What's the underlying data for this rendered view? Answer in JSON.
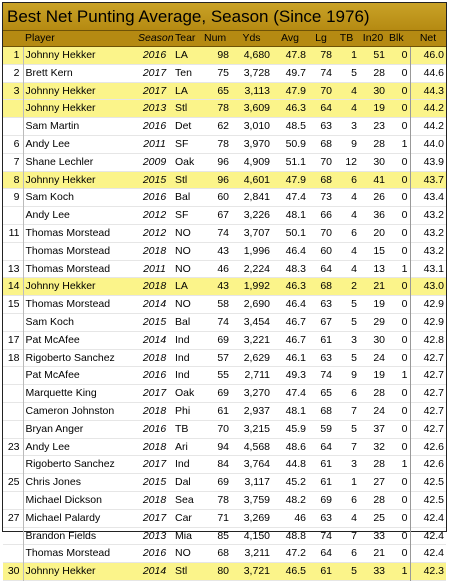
{
  "title": "Best Net Punting Average, Season (Since 1976)",
  "columns": {
    "rank": "",
    "player": "Player",
    "season": "Season",
    "team": "Tear",
    "num": "Num",
    "yds": "Yds",
    "avg": "Avg",
    "lg": "Lg",
    "tb": "TB",
    "in20": "In20",
    "blk": "Blk",
    "net": "Net"
  },
  "highlight_color": "#fbf48a",
  "header_color": "#b58a12",
  "rows": [
    {
      "rank": "1",
      "player": "Johnny Hekker",
      "season": "2016",
      "team": "LA",
      "num": "98",
      "yds": "4,680",
      "avg": "47.8",
      "lg": "78",
      "tb": "1",
      "in20": "51",
      "blk": "0",
      "net": "46.0",
      "hl": true
    },
    {
      "rank": "2",
      "player": "Brett Kern",
      "season": "2017",
      "team": "Ten",
      "num": "75",
      "yds": "3,728",
      "avg": "49.7",
      "lg": "74",
      "tb": "5",
      "in20": "28",
      "blk": "0",
      "net": "44.6",
      "hl": false
    },
    {
      "rank": "3",
      "player": "Johnny Hekker",
      "season": "2017",
      "team": "LA",
      "num": "65",
      "yds": "3,113",
      "avg": "47.9",
      "lg": "70",
      "tb": "4",
      "in20": "30",
      "blk": "0",
      "net": "44.3",
      "hl": true
    },
    {
      "rank": "",
      "player": "Johnny Hekker",
      "season": "2013",
      "team": "Stl",
      "num": "78",
      "yds": "3,609",
      "avg": "46.3",
      "lg": "64",
      "tb": "4",
      "in20": "19",
      "blk": "0",
      "net": "44.2",
      "hl": true
    },
    {
      "rank": "",
      "player": "Sam Martin",
      "season": "2016",
      "team": "Det",
      "num": "62",
      "yds": "3,010",
      "avg": "48.5",
      "lg": "63",
      "tb": "3",
      "in20": "23",
      "blk": "0",
      "net": "44.2",
      "hl": false
    },
    {
      "rank": "6",
      "player": "Andy Lee",
      "season": "2011",
      "team": "SF",
      "num": "78",
      "yds": "3,970",
      "avg": "50.9",
      "lg": "68",
      "tb": "9",
      "in20": "28",
      "blk": "1",
      "net": "44.0",
      "hl": false
    },
    {
      "rank": "7",
      "player": "Shane Lechler",
      "season": "2009",
      "team": "Oak",
      "num": "96",
      "yds": "4,909",
      "avg": "51.1",
      "lg": "70",
      "tb": "12",
      "in20": "30",
      "blk": "0",
      "net": "43.9",
      "hl": false
    },
    {
      "rank": "8",
      "player": "Johnny Hekker",
      "season": "2015",
      "team": "Stl",
      "num": "96",
      "yds": "4,601",
      "avg": "47.9",
      "lg": "68",
      "tb": "6",
      "in20": "41",
      "blk": "0",
      "net": "43.7",
      "hl": true
    },
    {
      "rank": "9",
      "player": "Sam Koch",
      "season": "2016",
      "team": "Bal",
      "num": "60",
      "yds": "2,841",
      "avg": "47.4",
      "lg": "73",
      "tb": "4",
      "in20": "26",
      "blk": "0",
      "net": "43.4",
      "hl": false
    },
    {
      "rank": "",
      "player": "Andy Lee",
      "season": "2012",
      "team": "SF",
      "num": "67",
      "yds": "3,226",
      "avg": "48.1",
      "lg": "66",
      "tb": "4",
      "in20": "36",
      "blk": "0",
      "net": "43.2",
      "hl": false
    },
    {
      "rank": "11",
      "player": "Thomas Morstead",
      "season": "2012",
      "team": "NO",
      "num": "74",
      "yds": "3,707",
      "avg": "50.1",
      "lg": "70",
      "tb": "6",
      "in20": "20",
      "blk": "0",
      "net": "43.2",
      "hl": false
    },
    {
      "rank": "",
      "player": "Thomas Morstead",
      "season": "2018",
      "team": "NO",
      "num": "43",
      "yds": "1,996",
      "avg": "46.4",
      "lg": "60",
      "tb": "4",
      "in20": "15",
      "blk": "0",
      "net": "43.2",
      "hl": false
    },
    {
      "rank": "13",
      "player": "Thomas Morstead",
      "season": "2011",
      "team": "NO",
      "num": "46",
      "yds": "2,224",
      "avg": "48.3",
      "lg": "64",
      "tb": "4",
      "in20": "13",
      "blk": "1",
      "net": "43.1",
      "hl": false
    },
    {
      "rank": "14",
      "player": "Johnny Hekker",
      "season": "2018",
      "team": "LA",
      "num": "43",
      "yds": "1,992",
      "avg": "46.3",
      "lg": "68",
      "tb": "2",
      "in20": "21",
      "blk": "0",
      "net": "43.0",
      "hl": true
    },
    {
      "rank": "15",
      "player": "Thomas Morstead",
      "season": "2014",
      "team": "NO",
      "num": "58",
      "yds": "2,690",
      "avg": "46.4",
      "lg": "63",
      "tb": "5",
      "in20": "19",
      "blk": "0",
      "net": "42.9",
      "hl": false
    },
    {
      "rank": "",
      "player": "Sam Koch",
      "season": "2015",
      "team": "Bal",
      "num": "74",
      "yds": "3,454",
      "avg": "46.7",
      "lg": "67",
      "tb": "5",
      "in20": "29",
      "blk": "0",
      "net": "42.9",
      "hl": false
    },
    {
      "rank": "17",
      "player": "Pat McAfee",
      "season": "2014",
      "team": "Ind",
      "num": "69",
      "yds": "3,221",
      "avg": "46.7",
      "lg": "61",
      "tb": "3",
      "in20": "30",
      "blk": "0",
      "net": "42.8",
      "hl": false
    },
    {
      "rank": "18",
      "player": "Rigoberto Sanchez",
      "season": "2018",
      "team": "Ind",
      "num": "57",
      "yds": "2,629",
      "avg": "46.1",
      "lg": "63",
      "tb": "5",
      "in20": "24",
      "blk": "0",
      "net": "42.7",
      "hl": false
    },
    {
      "rank": "",
      "player": "Pat McAfee",
      "season": "2016",
      "team": "Ind",
      "num": "55",
      "yds": "2,711",
      "avg": "49.3",
      "lg": "74",
      "tb": "9",
      "in20": "19",
      "blk": "1",
      "net": "42.7",
      "hl": false
    },
    {
      "rank": "",
      "player": "Marquette King",
      "season": "2017",
      "team": "Oak",
      "num": "69",
      "yds": "3,270",
      "avg": "47.4",
      "lg": "65",
      "tb": "6",
      "in20": "28",
      "blk": "0",
      "net": "42.7",
      "hl": false
    },
    {
      "rank": "",
      "player": "Cameron Johnston",
      "season": "2018",
      "team": "Phi",
      "num": "61",
      "yds": "2,937",
      "avg": "48.1",
      "lg": "68",
      "tb": "7",
      "in20": "24",
      "blk": "0",
      "net": "42.7",
      "hl": false
    },
    {
      "rank": "",
      "player": "Bryan Anger",
      "season": "2016",
      "team": "TB",
      "num": "70",
      "yds": "3,215",
      "avg": "45.9",
      "lg": "59",
      "tb": "5",
      "in20": "37",
      "blk": "0",
      "net": "42.7",
      "hl": false
    },
    {
      "rank": "23",
      "player": "Andy Lee",
      "season": "2018",
      "team": "Ari",
      "num": "94",
      "yds": "4,568",
      "avg": "48.6",
      "lg": "64",
      "tb": "7",
      "in20": "32",
      "blk": "0",
      "net": "42.6",
      "hl": false
    },
    {
      "rank": "",
      "player": "Rigoberto Sanchez",
      "season": "2017",
      "team": "Ind",
      "num": "84",
      "yds": "3,764",
      "avg": "44.8",
      "lg": "61",
      "tb": "3",
      "in20": "28",
      "blk": "1",
      "net": "42.6",
      "hl": false
    },
    {
      "rank": "25",
      "player": "Chris Jones",
      "season": "2015",
      "team": "Dal",
      "num": "69",
      "yds": "3,117",
      "avg": "45.2",
      "lg": "61",
      "tb": "1",
      "in20": "27",
      "blk": "0",
      "net": "42.5",
      "hl": false
    },
    {
      "rank": "",
      "player": "Michael Dickson",
      "season": "2018",
      "team": "Sea",
      "num": "78",
      "yds": "3,759",
      "avg": "48.2",
      "lg": "69",
      "tb": "6",
      "in20": "28",
      "blk": "0",
      "net": "42.5",
      "hl": false
    },
    {
      "rank": "27",
      "player": "Michael Palardy",
      "season": "2017",
      "team": "Car",
      "num": "71",
      "yds": "3,269",
      "avg": "46",
      "lg": "63",
      "tb": "4",
      "in20": "25",
      "blk": "0",
      "net": "42.4",
      "hl": false
    },
    {
      "rank": "",
      "player": "Brandon Fields",
      "season": "2013",
      "team": "Mia",
      "num": "85",
      "yds": "4,150",
      "avg": "48.8",
      "lg": "74",
      "tb": "7",
      "in20": "33",
      "blk": "0",
      "net": "42.4",
      "hl": false
    },
    {
      "rank": "",
      "player": "Thomas Morstead",
      "season": "2016",
      "team": "NO",
      "num": "68",
      "yds": "3,211",
      "avg": "47.2",
      "lg": "64",
      "tb": "6",
      "in20": "21",
      "blk": "0",
      "net": "42.4",
      "hl": false
    },
    {
      "rank": "30",
      "player": "Johnny Hekker",
      "season": "2014",
      "team": "Stl",
      "num": "80",
      "yds": "3,721",
      "avg": "46.5",
      "lg": "61",
      "tb": "5",
      "in20": "33",
      "blk": "1",
      "net": "42.3",
      "hl": true
    }
  ]
}
